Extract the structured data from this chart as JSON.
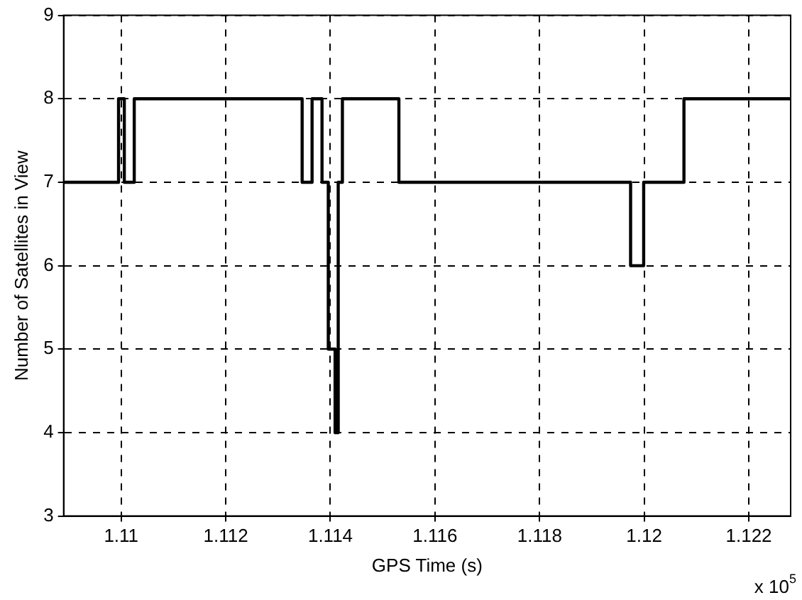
{
  "chart_data": {
    "type": "step",
    "xlabel": "GPS Time (s)",
    "ylabel": "Number of Satellites in View",
    "annotations": [
      "x 10$^{5}$"
    ],
    "x": [
      1.1089,
      1.10995,
      1.11006,
      1.11025,
      1.11346,
      1.11365,
      1.11384,
      1.11396,
      1.11409,
      1.11415,
      1.11423,
      1.11531,
      1.11974,
      1.11999,
      1.12076,
      1.1228
    ],
    "series": [
      {
        "color": "#000000",
        "values": [
          7,
          8,
          7,
          8,
          7,
          8,
          7,
          5,
          4,
          7,
          8,
          7,
          6,
          7,
          8,
          8
        ]
      }
    ],
    "xlim": [
      1.1089,
      1.1228
    ],
    "xticks": [
      1.11,
      1.112,
      1.114,
      1.116,
      1.118,
      1.12,
      1.122
    ],
    "ylim": [
      3,
      9
    ],
    "yticks": [
      3,
      4,
      5,
      6,
      7,
      8,
      9
    ],
    "grid": true,
    "legend": false,
    "marker": "none",
    "line_style": "solid"
  }
}
